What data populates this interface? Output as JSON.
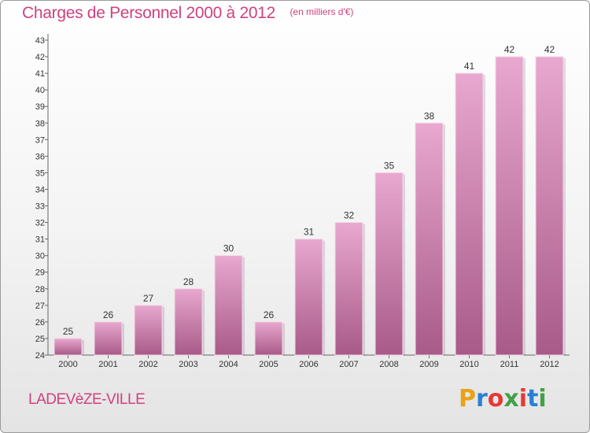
{
  "header": {
    "title": "Charges de Personnel 2000 à 2012",
    "subtitle": "(en milliers d'€)"
  },
  "footer": {
    "commune": "LADEVèZE-VILLE",
    "logo_letters": [
      "P",
      "r",
      "o",
      "x",
      "i",
      "t",
      "i"
    ],
    "logo_colors": [
      "#e8a317",
      "#2a7fd4",
      "#e53935",
      "#43a047",
      "#e53935",
      "#2a7fd4",
      "#43a047"
    ]
  },
  "colors": {
    "bar_top": "#e8a8cf",
    "bar_bottom": "#a85a88",
    "title": "#d0417f"
  },
  "chart_data": {
    "type": "bar",
    "title": "Charges de Personnel 2000 à 2012",
    "subtitle": "(en milliers d'€)",
    "categories": [
      "2000",
      "2001",
      "2002",
      "2003",
      "2004",
      "2005",
      "2006",
      "2007",
      "2008",
      "2009",
      "2010",
      "2011",
      "2012"
    ],
    "values": [
      25,
      26,
      27,
      28,
      30,
      26,
      31,
      32,
      35,
      38,
      41,
      42,
      42
    ],
    "ylim": [
      24,
      43
    ],
    "yticks": [
      24,
      25,
      26,
      27,
      28,
      29,
      30,
      31,
      32,
      33,
      34,
      35,
      36,
      37,
      38,
      39,
      40,
      41,
      42,
      43
    ],
    "grid": false,
    "legend": "none"
  }
}
